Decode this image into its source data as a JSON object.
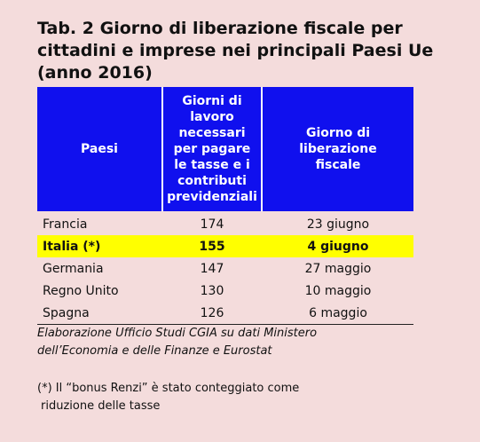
{
  "title": {
    "line1": "Tab. 2 Giorno di liberazione fiscale per",
    "line2": "cittadini e imprese nei principali Paesi Ue",
    "line3": "(anno 2016)"
  },
  "table": {
    "headers": {
      "paesi": "Paesi",
      "giorni": [
        "Giorni di",
        "lavoro",
        "necessari",
        "per pagare",
        "le tasse e i",
        "contributi",
        "previdenziali"
      ],
      "giorno": [
        "Giorno di",
        "liberazione",
        "fiscale"
      ]
    },
    "rows": [
      {
        "paese": "Francia",
        "giorni": "174",
        "giorno": "23 giugno"
      },
      {
        "paese": "Italia (*)",
        "giorni": "155",
        "giorno": "4 giugno"
      },
      {
        "paese": "Germania",
        "giorni": "147",
        "giorno": "27 maggio"
      },
      {
        "paese": "Regno Unito",
        "giorni": "130",
        "giorno": "10 maggio"
      },
      {
        "paese": "Spagna",
        "giorni": "126",
        "giorno": "6 maggio"
      }
    ]
  },
  "source": {
    "line1": "Elaborazione Ufficio Studi CGIA su dati Ministero",
    "line2": "dell’Economia e delle Finanze e Eurostat"
  },
  "note": {
    "line1": "(*) Il “bonus Renzi” è stato conteggiato come",
    "line2": "riduzione delle tasse"
  },
  "colors": {
    "header_bg": "#1010ee",
    "highlight_bg": "#ffff00",
    "page_bg": "#f4dcdc"
  }
}
